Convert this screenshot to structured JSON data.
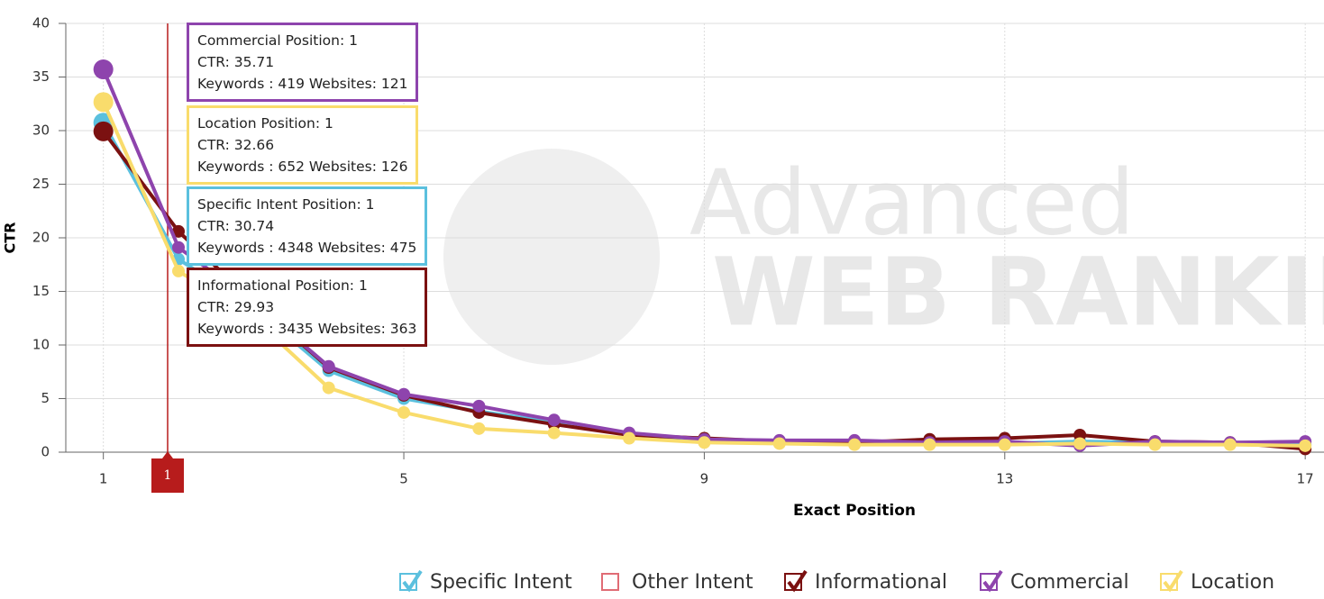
{
  "chart_data": {
    "type": "line",
    "x_label": "Exact Position",
    "y_label": "CTR",
    "x": [
      1,
      2,
      3,
      4,
      5,
      6,
      7,
      8,
      9,
      10,
      11,
      12,
      13,
      14,
      15,
      16,
      17
    ],
    "xlim": [
      0.5,
      17.25
    ],
    "xticks": [
      1,
      5,
      9,
      13,
      17
    ],
    "ylim": [
      0,
      40
    ],
    "yticks": [
      0,
      5,
      10,
      15,
      20,
      25,
      30,
      35,
      40
    ],
    "grid": true,
    "series": [
      {
        "name": "Specific Intent",
        "color": "#5bc0de",
        "visible": true,
        "values": [
          30.74,
          18.0,
          13.5,
          7.6,
          5.0,
          3.8,
          2.8,
          1.6,
          1.1,
          0.9,
          0.8,
          0.8,
          0.8,
          1.0,
          0.9,
          0.8,
          0.7
        ]
      },
      {
        "name": "Other Intent",
        "color": "#e06c75",
        "visible": false
      },
      {
        "name": "Informational",
        "color": "#7b1111",
        "visible": true,
        "values": [
          29.93,
          20.6,
          14.0,
          7.9,
          5.3,
          3.7,
          2.6,
          1.6,
          1.3,
          1.0,
          0.9,
          1.2,
          1.3,
          1.6,
          1.0,
          0.9,
          0.3
        ]
      },
      {
        "name": "Commercial",
        "color": "#8e44ad",
        "visible": true,
        "values": [
          35.71,
          19.1,
          14.0,
          8.0,
          5.4,
          4.3,
          3.0,
          1.8,
          1.2,
          1.1,
          1.1,
          0.9,
          1.0,
          0.6,
          1.0,
          0.9,
          1.0
        ]
      },
      {
        "name": "Location",
        "color": "#f9dc6c",
        "visible": true,
        "values": [
          32.66,
          16.9,
          12.5,
          6.0,
          3.7,
          2.2,
          1.8,
          1.3,
          0.9,
          0.8,
          0.7,
          0.7,
          0.7,
          0.8,
          0.7,
          0.7,
          0.6
        ]
      }
    ],
    "crosshair_label": "1",
    "tooltips": [
      {
        "color": "#8e44ad",
        "lines": [
          "Commercial Position: 1",
          "CTR: 35.71",
          "Keywords : 419 Websites: 121"
        ]
      },
      {
        "color": "#f9dc6c",
        "lines": [
          "Location Position: 1",
          "CTR: 32.66",
          "Keywords : 652 Websites: 126"
        ]
      },
      {
        "color": "#5bc0de",
        "lines": [
          "Specific Intent Position: 1",
          "CTR: 30.74",
          "Keywords : 4348 Websites: 475"
        ]
      },
      {
        "color": "#7b1111",
        "lines": [
          "Informational Position: 1",
          "CTR: 29.93",
          "Keywords : 3435 Websites: 363"
        ]
      }
    ],
    "watermark": [
      "Advanced",
      "WEB RANKING"
    ]
  }
}
